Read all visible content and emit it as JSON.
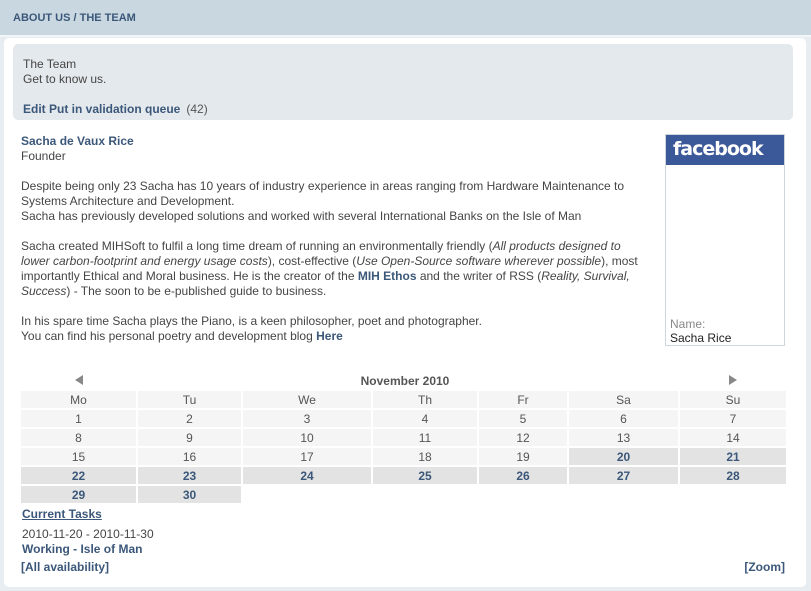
{
  "header": {
    "breadcrumb": "ABOUT US / THE TEAM"
  },
  "intro": {
    "title": "The Team",
    "subtitle": "Get to know us.",
    "edit_label": "Edit Put in validation queue",
    "count": "(42)"
  },
  "profile": {
    "name": "Sacha de Vaux Rice",
    "role": "Founder",
    "p1a": "Despite being only 23 Sacha has 10 years of industry experience in areas ranging from Hardware Maintenance to Systems Architecture and Development.",
    "p1b": "Sacha has previously developed solutions and worked with several International Banks on the Isle of Man",
    "p2": {
      "s1": "Sacha created MIHSoft to fulfil a long time dream of running an environmentally friendly (",
      "i1": "All products designed to lower carbon-footprint and energy usage costs",
      "s2": "), cost-effective (",
      "i2": "Use Open-Source software wherever possible",
      "s3": "), most importantly Ethical and Moral business. He is the creator of the ",
      "b1": "MIH Ethos",
      "s4": " and the writer of RSS (",
      "i3": "Reality, Survival, Success",
      "s5": ") - The soon to be e-published guide to business."
    },
    "p3a": "In his spare time Sacha plays the Piano, is a keen philosopher, poet and photographer.",
    "p3b": "You can find his personal poetry and development blog ",
    "blog_link": "Here"
  },
  "facebook": {
    "logo": "facebook",
    "name_label": "Name:",
    "name_value": "Sacha Rice",
    "brand_color": "#3b5998"
  },
  "calendar": {
    "month": "November 2010",
    "prev_icon": "arrow-left-icon",
    "next_icon": "arrow-right-icon",
    "weekdays": [
      "Mo",
      "Tu",
      "We",
      "Th",
      "Fr",
      "Sa",
      "Su"
    ],
    "weeks": [
      [
        "1",
        "2",
        "3",
        "4",
        "5",
        "6",
        "7"
      ],
      [
        "8",
        "9",
        "10",
        "11",
        "12",
        "13",
        "14"
      ],
      [
        "15",
        "16",
        "17",
        "18",
        "19",
        "20",
        "21"
      ],
      [
        "22",
        "23",
        "24",
        "25",
        "26",
        "27",
        "28"
      ],
      [
        "29",
        "30",
        "",
        "",
        "",
        "",
        ""
      ]
    ],
    "highlighted": [
      "20",
      "21",
      "22",
      "23",
      "24",
      "25",
      "26",
      "27",
      "28",
      "29",
      "30"
    ]
  },
  "tasks": {
    "heading": "Current Tasks",
    "range": "2010-11-20 - 2010-11-30",
    "task": "Working - Isle of Man"
  },
  "links": {
    "all_availability": "[All availability]",
    "zoom": "[Zoom]"
  }
}
